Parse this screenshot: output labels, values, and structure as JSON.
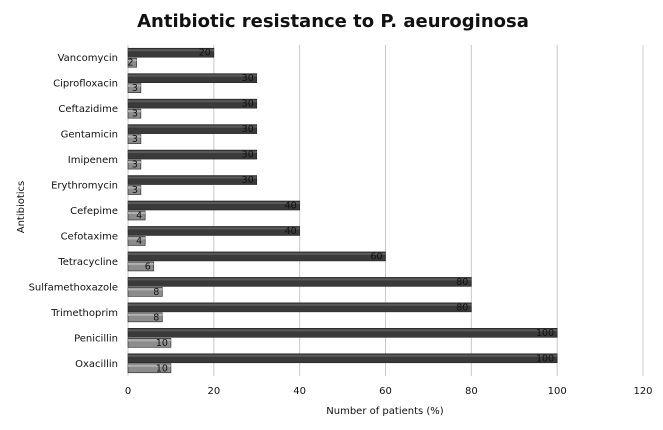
{
  "chart_data": {
    "type": "bar",
    "orientation": "horizontal",
    "title": "Antibiotic resistance to P. aeuroginosa",
    "xlabel": "Number of patients (%)",
    "ylabel": "Antibiotics",
    "xlim": [
      0,
      120
    ],
    "xticks": [
      0,
      20,
      40,
      60,
      80,
      100,
      120
    ],
    "grid": true,
    "categories": [
      "Vancomycin",
      "Ciprofloxacin",
      "Ceftazidime",
      "Gentamicin",
      "Imipenem",
      "Erythromycin",
      "Cefepime",
      "Cefotaxime",
      "Tetracycline",
      "Sulfamethoxazole",
      "Trimethoprim",
      "Penicillin",
      "Oxacillin"
    ],
    "series": [
      {
        "values": [
          20,
          30,
          30,
          30,
          30,
          30,
          40,
          40,
          60,
          80,
          80,
          100,
          100
        ],
        "color": "#3a3a3a"
      },
      {
        "values": [
          2,
          3,
          3,
          3,
          3,
          3,
          4,
          4,
          6,
          8,
          8,
          10,
          10
        ],
        "color": "#8c8c8c"
      }
    ]
  }
}
